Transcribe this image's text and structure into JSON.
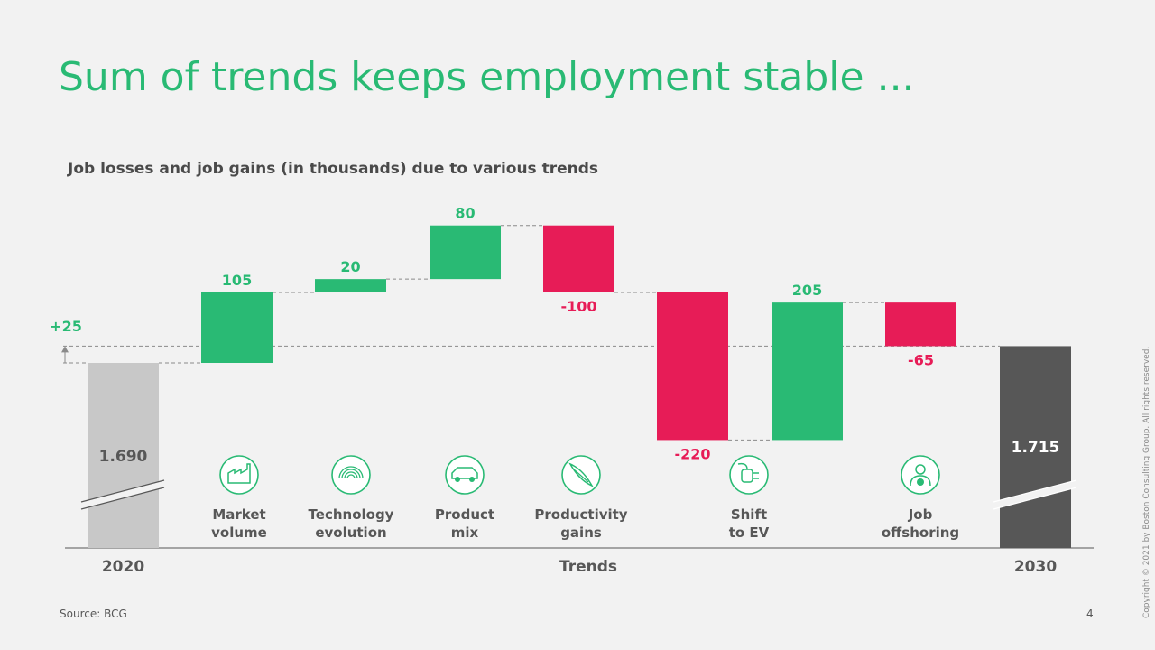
{
  "title": "Sum of trends keeps employment stable ...",
  "subtitle": "Job losses and job gains (in thousands) due to various trends",
  "source": "Source: BCG",
  "page_number": "4",
  "copyright": "Copyright © 2021 by Boston Consulting Group. All rights reserved.",
  "colors": {
    "accent": "#29ba74",
    "negative": "#e71c57",
    "start": "#c8c8c8",
    "end": "#575757",
    "text": "#4a4a4a"
  },
  "chart_data": {
    "type": "waterfall",
    "start": {
      "label": "2020",
      "value": 1690,
      "value_label": "1.690"
    },
    "end": {
      "label": "2030",
      "value": 1715,
      "value_label": "1.715"
    },
    "net_change_label": "+25",
    "group_axis_label": "Trends",
    "steps": [
      {
        "id": "market",
        "name": [
          "Market",
          "volume"
        ],
        "delta": 105,
        "label": "105",
        "icon": "factory-icon"
      },
      {
        "id": "tech",
        "name": [
          "Technology",
          "evolution"
        ],
        "delta": 20,
        "label": "20",
        "icon": "fingerprint-icon"
      },
      {
        "id": "product",
        "name": [
          "Product",
          "mix"
        ],
        "delta": 80,
        "label": "80",
        "icon": "car-icon"
      },
      {
        "id": "productivity",
        "name": [
          "Productivity",
          "gains"
        ],
        "delta": -100,
        "label": "-100",
        "icon": "wing-icon"
      },
      {
        "id": "ev-loss",
        "name": [
          "Shift",
          "to EV"
        ],
        "delta": -220,
        "label": "-220",
        "icon": "ev-plug-icon"
      },
      {
        "id": "ev-gain",
        "name": [],
        "delta": 205,
        "label": "205",
        "icon": ""
      },
      {
        "id": "offshoring",
        "name": [
          "Job",
          "offshoring"
        ],
        "delta": -65,
        "label": "-65",
        "icon": "worker-globe-icon"
      }
    ]
  }
}
